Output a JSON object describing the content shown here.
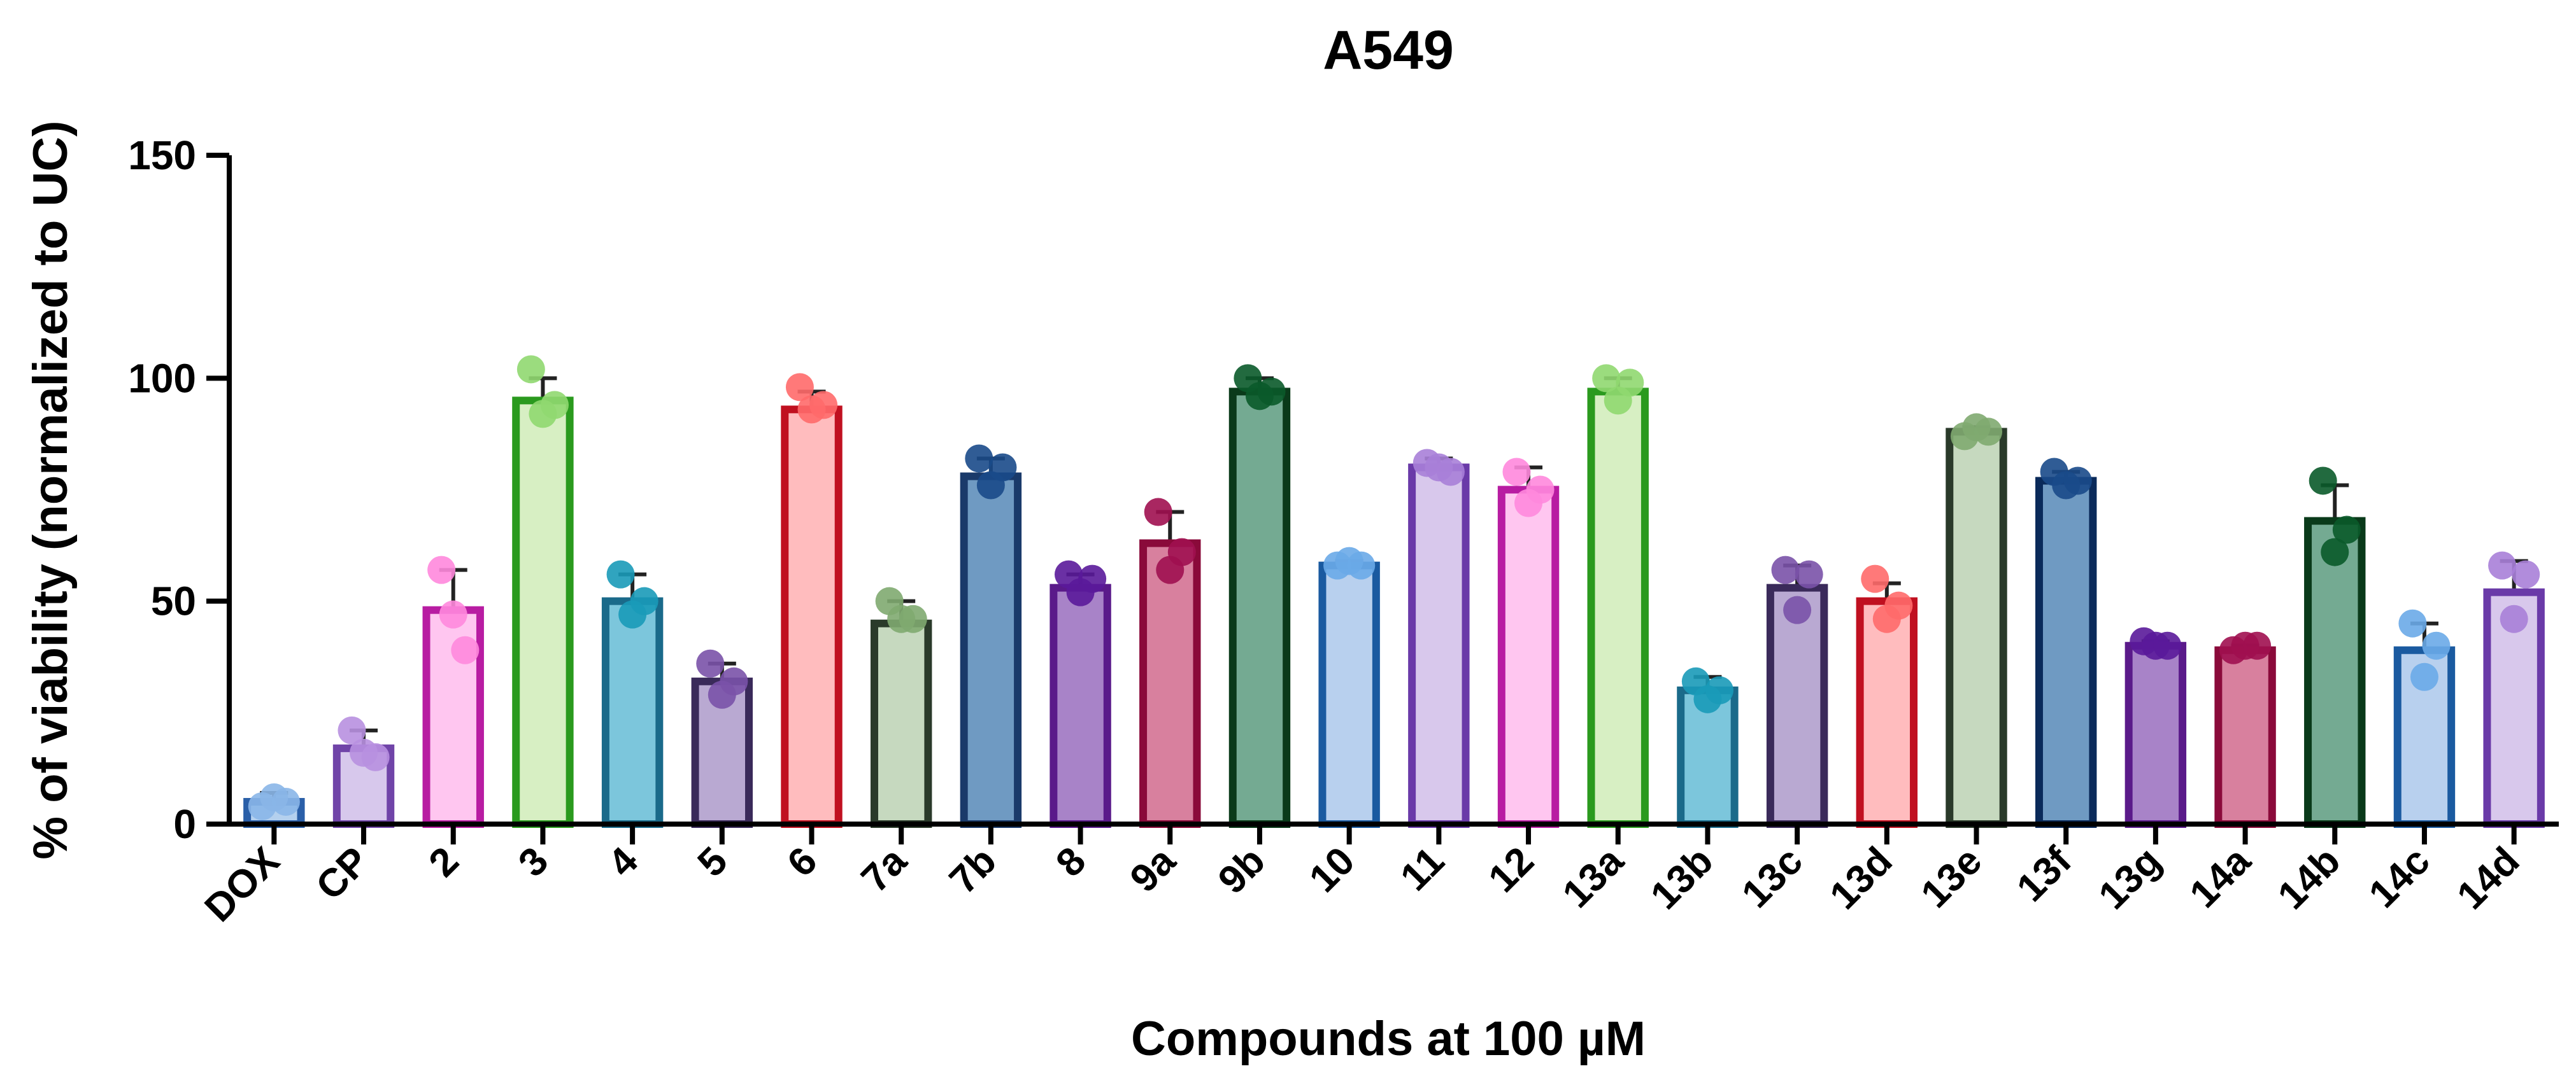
{
  "chart_data": {
    "type": "bar",
    "title": "A549",
    "xlabel": "Compounds at 100 µM",
    "ylabel": "% of viability (normalized to UC)",
    "ylim": [
      0,
      150
    ],
    "yticks": [
      "0",
      "50",
      "100",
      "150"
    ],
    "grid": false,
    "legend": "none",
    "categories": [
      "DOX",
      "CP",
      "2",
      "3",
      "4",
      "5",
      "6",
      "7a",
      "7b",
      "8",
      "9a",
      "9b",
      "10",
      "11",
      "12",
      "13a",
      "13b",
      "13c",
      "13d",
      "13e",
      "13f",
      "13g",
      "14a",
      "14b",
      "14c",
      "14d"
    ],
    "values": [
      5,
      17,
      48,
      95,
      50,
      32,
      93,
      45,
      78,
      53,
      63,
      97,
      58,
      80,
      75,
      97,
      30,
      53,
      50,
      88,
      77,
      40,
      39,
      68,
      39,
      52
    ],
    "errors": [
      2,
      4,
      9,
      5,
      6,
      4,
      4,
      5,
      4,
      3,
      7,
      3,
      1,
      2,
      5,
      3,
      3,
      5,
      4,
      1,
      2,
      1,
      1,
      8,
      6,
      7
    ],
    "points": [
      [
        4,
        6,
        5
      ],
      [
        21,
        16,
        15
      ],
      [
        57,
        47,
        39
      ],
      [
        102,
        92,
        94
      ],
      [
        56,
        47,
        50
      ],
      [
        36,
        29,
        32
      ],
      [
        98,
        93,
        94
      ],
      [
        50,
        46,
        46
      ],
      [
        82,
        76,
        80
      ],
      [
        56,
        52,
        55
      ],
      [
        70,
        57,
        61
      ],
      [
        100,
        96,
        97
      ],
      [
        58,
        59,
        58
      ],
      [
        81,
        80,
        79
      ],
      [
        79,
        72,
        75
      ],
      [
        100,
        95,
        99
      ],
      [
        32,
        28,
        30
      ],
      [
        57,
        48,
        56
      ],
      [
        55,
        46,
        49
      ],
      [
        87,
        89,
        88
      ],
      [
        79,
        76,
        77
      ],
      [
        41,
        40,
        40
      ],
      [
        39,
        40,
        40
      ],
      [
        77,
        61,
        66
      ],
      [
        45,
        33,
        40
      ],
      [
        58,
        46,
        56
      ]
    ],
    "bar_fill": [
      "#b4d0ee",
      "#d7c8ec",
      "#ffc6f0",
      "#d7efc3",
      "#7cc6dc",
      "#b9a9d2",
      "#ffbcbe",
      "#c6d9bf",
      "#6f9ac2",
      "#a883c8",
      "#d8809e",
      "#74aa92",
      "#b8d0ee",
      "#d8c8ec",
      "#ffc6f0",
      "#d7efc3",
      "#7cc6dc",
      "#b9a9d2",
      "#ffbcbe",
      "#c6d9bf",
      "#6f9ac2",
      "#a883c8",
      "#d8809e",
      "#74aa92",
      "#b8d0ee",
      "#d8c8ec"
    ],
    "bar_edge": [
      "#2a5fa8",
      "#7044a8",
      "#b81ca2",
      "#2a9a1e",
      "#1a6a8a",
      "#3a2a5a",
      "#c01020",
      "#2a3a2a",
      "#1a3a6a",
      "#5a1a8a",
      "#8a0a3a",
      "#0a3a1a",
      "#1a5aa0",
      "#6a3aa8",
      "#b81ca2",
      "#2a9a1e",
      "#1a6a8a",
      "#3a2a5a",
      "#c01020",
      "#2a3a2a",
      "#0a2a5a",
      "#5a1a8a",
      "#8a0a3a",
      "#0a3a1a",
      "#1a5aa0",
      "#6a3aa8"
    ],
    "point_color": [
      "#8ab6e8",
      "#b890e0",
      "#ff88dd",
      "#90d870",
      "#1a9ab8",
      "#7a52a8",
      "#ff6a6a",
      "#80aa70",
      "#1a4a8a",
      "#5a1a9a",
      "#a01050",
      "#0a5a2a",
      "#6aaae8",
      "#a880d8",
      "#ff88dd",
      "#90d870",
      "#1a9ab8",
      "#7a52a8",
      "#ff6a6a",
      "#80aa70",
      "#1a4a8a",
      "#5a1a9a",
      "#a01050",
      "#0a5a2a",
      "#6aaae8",
      "#a880d8"
    ]
  }
}
